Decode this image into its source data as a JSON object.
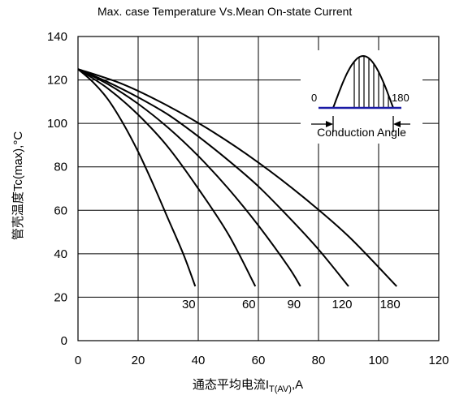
{
  "chart_data": {
    "type": "line",
    "title": "Max. case Temperature Vs.Mean On-state Current",
    "xlabel_main": "通态平均电流I",
    "xlabel_sub": "T(AV)",
    "xlabel_suffix": ",A",
    "ylabel": "管壳温度Tc(max),°C",
    "xlim": [
      0,
      120
    ],
    "ylim": [
      0,
      140
    ],
    "x_ticks": [
      "0",
      "20",
      "40",
      "60",
      "80",
      "100",
      "120"
    ],
    "y_ticks": [
      "0",
      "20",
      "40",
      "60",
      "80",
      "100",
      "120",
      "140"
    ],
    "grid": true,
    "series": [
      {
        "name": "30",
        "x": [
          0,
          5,
          10,
          15,
          20,
          25,
          30,
          35,
          39
        ],
        "y": [
          125,
          119,
          111,
          100,
          87,
          72,
          56,
          40,
          25
        ]
      },
      {
        "name": "60",
        "x": [
          0,
          10,
          20,
          30,
          40,
          50,
          59
        ],
        "y": [
          125,
          116,
          104,
          89,
          70,
          49,
          25
        ]
      },
      {
        "name": "90",
        "x": [
          0,
          10,
          20,
          30,
          40,
          50,
          60,
          70,
          74
        ],
        "y": [
          125,
          118,
          109,
          98,
          85,
          70,
          53,
          34,
          25
        ]
      },
      {
        "name": "120",
        "x": [
          0,
          10,
          20,
          30,
          40,
          50,
          60,
          70,
          80,
          90
        ],
        "y": [
          125,
          119,
          112,
          104,
          94,
          83,
          71,
          57,
          42,
          25
        ]
      },
      {
        "name": "180",
        "x": [
          0,
          15,
          30,
          45,
          60,
          75,
          90,
          106
        ],
        "y": [
          125,
          118,
          108,
          96,
          82,
          66,
          48,
          25
        ]
      }
    ],
    "inset": {
      "left_label": "0",
      "right_label": "180",
      "caption": "Conduction Angle"
    }
  }
}
